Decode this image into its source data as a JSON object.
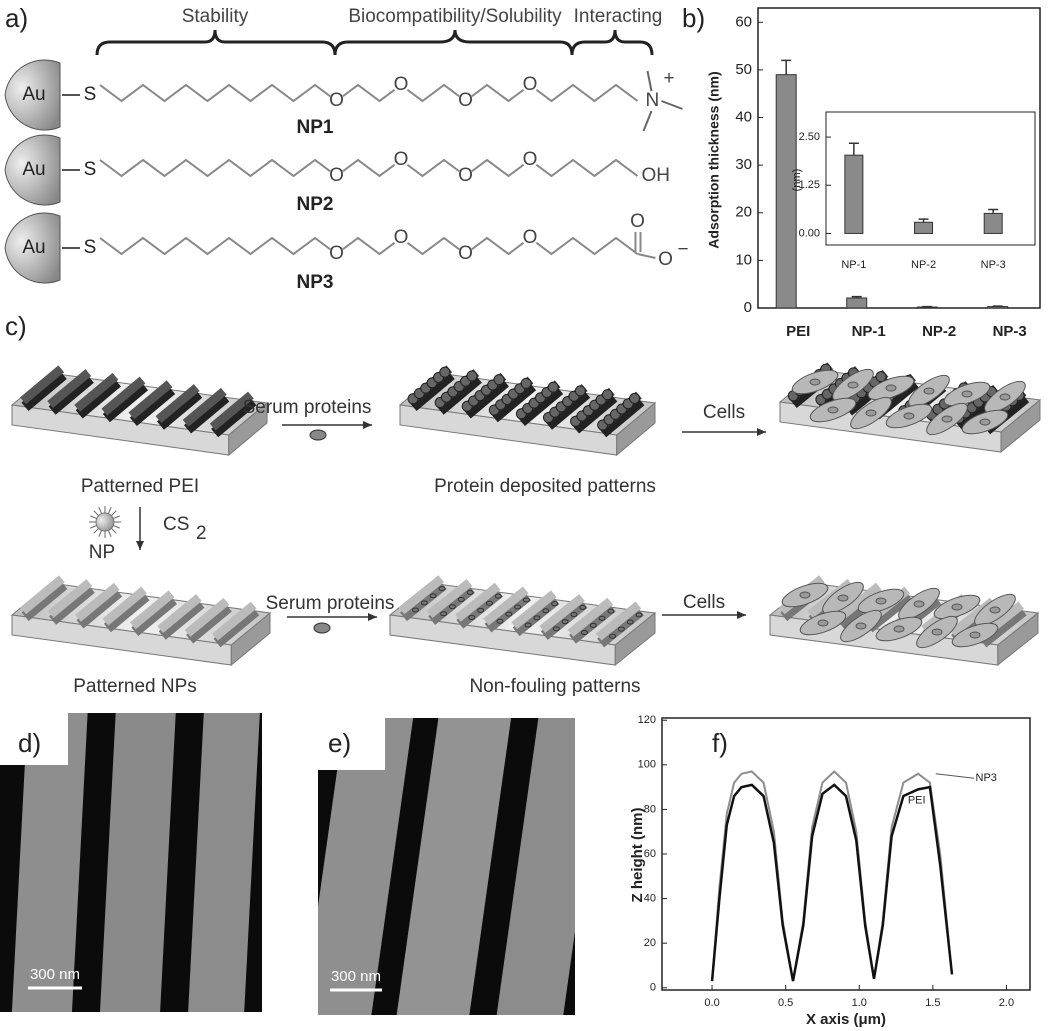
{
  "panels": {
    "a": "a)",
    "b": "b)",
    "c": "c)",
    "d": "d)",
    "e": "e)",
    "f": "f)"
  },
  "molecules": {
    "headers": [
      "Stability",
      "Biocompatibility/Solubility",
      "Interacting"
    ],
    "metal": "Au",
    "sulfur": "S",
    "oxygen": "O",
    "nitrogen": "N",
    "charge_plus": "+",
    "hydroxyl": "OH",
    "charge_minus": "−",
    "names": [
      "NP1",
      "NP2",
      "NP3"
    ]
  },
  "schematic": {
    "serum": "Serum proteins",
    "cells": "Cells",
    "patterned_pei": "Patterned PEI",
    "protein_patterns": "Protein deposited patterns",
    "reagent": "CS",
    "reagent_subscript": "2",
    "np": "NP",
    "patterned_nps": "Patterned NPs",
    "nonfouling": "Non-fouling patterns"
  },
  "afm": {
    "scale_bar": "300 nm"
  },
  "chart_data": [
    {
      "type": "bar",
      "ylabel": "Adsorption thickness (nm)",
      "categories": [
        "PEI",
        "NP-1",
        "NP-2",
        "NP-3"
      ],
      "values": [
        49,
        2.1,
        0.2,
        0.3
      ],
      "errors": [
        3,
        0.3,
        0.1,
        0.1
      ],
      "color": "#8a8a8a",
      "ylim": [
        0,
        63
      ],
      "yticks": [
        0,
        10,
        20,
        30,
        40,
        50,
        60
      ]
    },
    {
      "type": "bar",
      "ylabel": "(nm)",
      "categories": [
        "NP-1",
        "NP-2",
        "NP-3"
      ],
      "values": [
        2.03,
        0.29,
        0.52
      ],
      "errors": [
        0.31,
        0.08,
        0.1
      ],
      "color": "#8a8a8a",
      "ylim": [
        -0.3,
        3.15
      ],
      "yticks": [
        {
          "value": 0,
          "label": "0.00"
        },
        {
          "value": 1.25,
          "label": "1.25"
        },
        {
          "value": 2.5,
          "label": "2.50"
        }
      ]
    },
    {
      "type": "line",
      "xlabel": "X axis (μm)",
      "ylabel": "Z height (nm)",
      "x": [
        0,
        0.05,
        0.1,
        0.15,
        0.2,
        0.27,
        0.35,
        0.42,
        0.48,
        0.55,
        0.62,
        0.68,
        0.75,
        0.83,
        0.91,
        0.98,
        1.04,
        1.1,
        1.16,
        1.22,
        1.3,
        1.4,
        1.48,
        1.55,
        1.63
      ],
      "series": [
        {
          "name": "NP3",
          "color": "#8c8c8c",
          "values": [
            3,
            45,
            78,
            92,
            96,
            97,
            92,
            70,
            30,
            3,
            30,
            72,
            92,
            97,
            92,
            70,
            30,
            4,
            30,
            72,
            92,
            96,
            92,
            60,
            6
          ]
        },
        {
          "name": "PEI",
          "color": "#111111",
          "values": [
            3,
            40,
            73,
            86,
            90,
            91,
            86,
            65,
            28,
            3,
            28,
            68,
            87,
            91,
            86,
            66,
            28,
            4,
            28,
            68,
            86,
            89,
            90,
            55,
            6
          ]
        }
      ],
      "xlim": [
        -0.34,
        2.16
      ],
      "ylim": [
        -1,
        121
      ],
      "xticks": [
        {
          "value": 0,
          "label": "0.0"
        },
        {
          "value": 0.5,
          "label": "0.5"
        },
        {
          "value": 1,
          "label": "1.0"
        },
        {
          "value": 1.5,
          "label": "1.5"
        },
        {
          "value": 2,
          "label": "2.0"
        }
      ],
      "yticks": [
        0,
        20,
        40,
        60,
        80,
        100,
        120
      ]
    }
  ]
}
